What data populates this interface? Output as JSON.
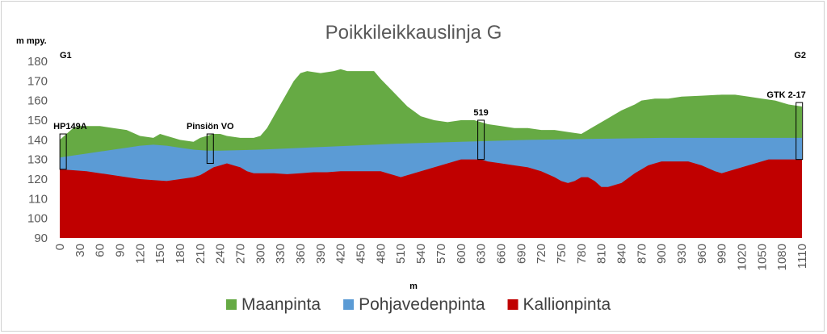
{
  "chart_data": {
    "type": "area",
    "title": "Poikkileikkauslinja G",
    "ylabel": "m mpy.",
    "xlabel": "m",
    "ylim": [
      90,
      180
    ],
    "yticks": [
      90,
      100,
      110,
      120,
      130,
      140,
      150,
      160,
      170,
      180
    ],
    "xlim": [
      0,
      1110
    ],
    "xticks": [
      0,
      30,
      60,
      90,
      120,
      150,
      180,
      210,
      240,
      270,
      300,
      330,
      360,
      390,
      420,
      450,
      480,
      510,
      540,
      570,
      600,
      630,
      660,
      690,
      720,
      750,
      780,
      810,
      840,
      870,
      900,
      930,
      960,
      990,
      1020,
      1050,
      1080,
      1110
    ],
    "grid": false,
    "legend_position": "bottom",
    "series": [
      {
        "name": "Maanpinta",
        "color": "#66aa44",
        "x": [
          0,
          10,
          20,
          30,
          40,
          60,
          80,
          100,
          120,
          140,
          150,
          160,
          180,
          200,
          210,
          220,
          230,
          240,
          250,
          270,
          290,
          300,
          310,
          330,
          350,
          360,
          370,
          390,
          410,
          420,
          430,
          450,
          470,
          480,
          500,
          520,
          540,
          560,
          580,
          600,
          620,
          630,
          640,
          660,
          680,
          700,
          720,
          740,
          760,
          780,
          790,
          800,
          820,
          840,
          860,
          870,
          890,
          910,
          930,
          960,
          990,
          1010,
          1030,
          1050,
          1070,
          1090,
          1110
        ],
        "values": [
          140,
          143,
          146,
          147,
          147,
          147,
          146,
          145,
          142,
          141,
          143,
          142,
          140,
          139,
          141,
          142,
          143,
          143,
          142,
          141,
          141,
          142,
          146,
          158,
          170,
          174,
          175,
          174,
          175,
          176,
          175,
          175,
          175,
          171,
          164,
          157,
          152,
          150,
          149,
          150,
          150,
          149,
          148,
          147,
          146,
          146,
          145,
          145,
          144,
          143,
          145,
          147,
          151,
          155,
          158,
          160,
          161,
          161,
          162,
          162.5,
          163,
          163,
          162,
          161,
          160,
          158,
          157
        ]
      },
      {
        "name": "Pohjavedenpinta",
        "color": "#5b9bd5",
        "x": [
          0,
          20,
          40,
          60,
          80,
          100,
          120,
          140,
          160,
          180,
          200,
          220,
          240,
          300,
          400,
          500,
          600,
          700,
          800,
          900,
          1000,
          1110
        ],
        "values": [
          131,
          132,
          133,
          134,
          135,
          136,
          137,
          137.5,
          137,
          136,
          135,
          134.5,
          134.5,
          135,
          136.5,
          138,
          139,
          140,
          140.5,
          141,
          141,
          141
        ]
      },
      {
        "name": "Kallionpinta",
        "color": "#c00000",
        "x": [
          0,
          20,
          40,
          60,
          80,
          100,
          120,
          140,
          160,
          180,
          200,
          210,
          220,
          230,
          240,
          250,
          260,
          270,
          280,
          290,
          300,
          320,
          340,
          360,
          380,
          400,
          420,
          440,
          460,
          480,
          490,
          500,
          510,
          520,
          540,
          560,
          580,
          600,
          620,
          630,
          640,
          660,
          680,
          700,
          720,
          740,
          750,
          760,
          770,
          780,
          790,
          800,
          810,
          820,
          840,
          860,
          880,
          890,
          900,
          920,
          940,
          960,
          980,
          990,
          1000,
          1020,
          1040,
          1060,
          1080,
          1100,
          1110
        ],
        "values": [
          125,
          124.5,
          124,
          123,
          122,
          121,
          120,
          119.5,
          119,
          120,
          121,
          122,
          124,
          126,
          127,
          128,
          127,
          126,
          124,
          123,
          123,
          123,
          122.5,
          123,
          123.5,
          123.5,
          124,
          124,
          124,
          124,
          123,
          122,
          121,
          122,
          124,
          126,
          128,
          130,
          130,
          130,
          129,
          128,
          127,
          126,
          124,
          121,
          119,
          118,
          119,
          121,
          121,
          119,
          116,
          116,
          118,
          123,
          127,
          128,
          129,
          129,
          129,
          127,
          124,
          123,
          124,
          126,
          128,
          130,
          130,
          130,
          130
        ]
      }
    ],
    "annotations": [
      {
        "text": "G1",
        "x": 0,
        "type": "top-label"
      },
      {
        "text": "G2",
        "x": 1110,
        "type": "top-label"
      },
      {
        "text": "HP149A",
        "x": 5,
        "bottom": 125,
        "top": 143
      },
      {
        "text": "Pinsiön VO",
        "x": 225,
        "bottom": 128,
        "top": 143
      },
      {
        "text": "519",
        "x": 630,
        "bottom": 130,
        "top": 150
      },
      {
        "text": "GTK 2-17",
        "x": 1106,
        "bottom": 130,
        "top": 159
      }
    ]
  }
}
